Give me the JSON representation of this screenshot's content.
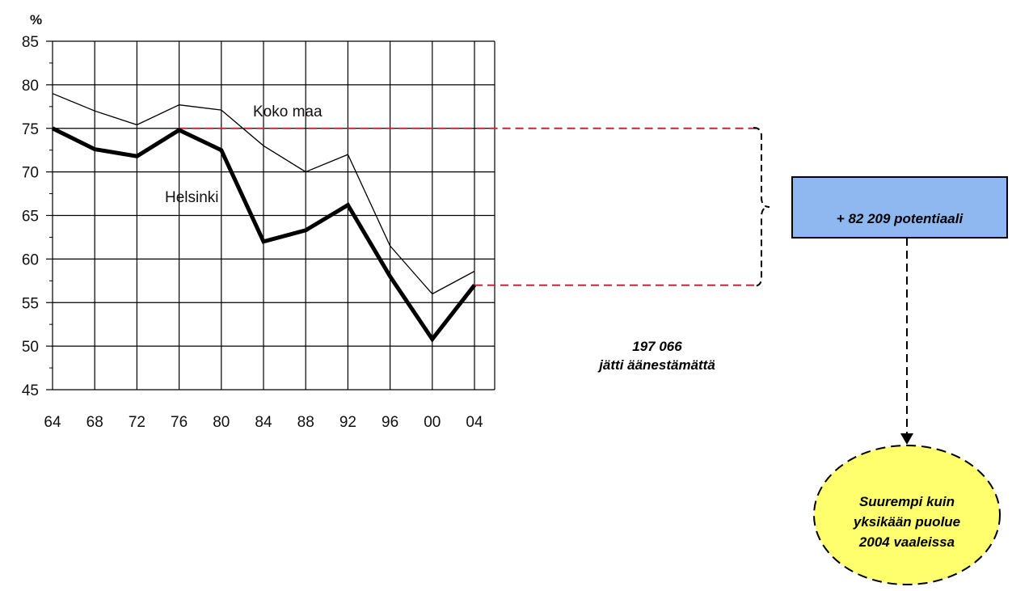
{
  "chart_data": {
    "type": "line",
    "y_unit": "%",
    "categories": [
      "64",
      "68",
      "72",
      "76",
      "80",
      "84",
      "88",
      "92",
      "96",
      "00",
      "04"
    ],
    "ylim": [
      45,
      85
    ],
    "yticks": [
      45,
      50,
      55,
      60,
      65,
      70,
      75,
      80,
      85
    ],
    "grid": true,
    "series": [
      {
        "name": "Koko maa",
        "values": [
          79,
          77,
          75.4,
          77.7,
          77.1,
          73,
          70,
          72,
          61.5,
          56,
          58.6
        ],
        "style": "thin",
        "color": "#000000"
      },
      {
        "name": "Helsinki",
        "values": [
          75,
          72.6,
          71.8,
          74.8,
          72.5,
          62,
          63.3,
          66.2,
          58,
          50.8,
          57
        ],
        "style": "thick",
        "color": "#000000"
      }
    ],
    "reference_lines": [
      {
        "value": 75,
        "from_category": "76",
        "color": "#c0283c"
      },
      {
        "value": 57,
        "from_category": "04",
        "color": "#c0283c"
      }
    ]
  },
  "annotations": {
    "bracket_color": "#000000",
    "nonvoters_count": "197 066",
    "nonvoters_text": "jätti äänestämättä",
    "potential_box": {
      "text": "+ 82 209 potentiaali",
      "fill": "#8fb8f0"
    },
    "result_ellipse": {
      "lines": [
        "Suurempi kuin",
        "yksikään puolue",
        "2004 vaaleissa"
      ],
      "fill": "#ffff6e"
    }
  }
}
